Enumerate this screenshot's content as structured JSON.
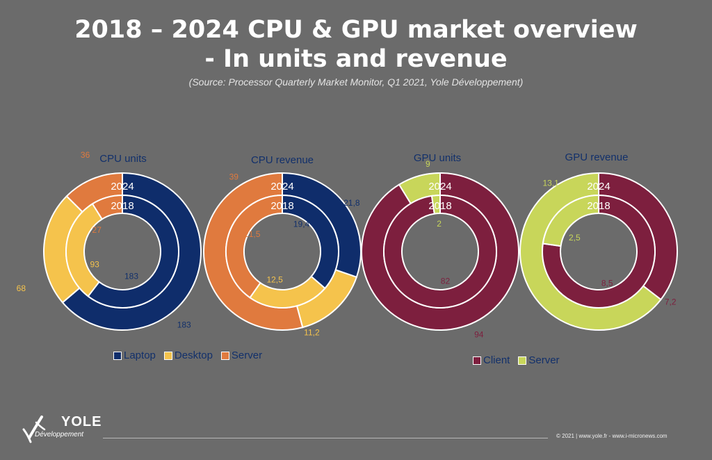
{
  "header": {
    "title_line1": "2018 – 2024 CPU & GPU market overview",
    "title_line2": "- In units and revenue",
    "source": "(Source: Processor Quarterly Market Monitor, Q1  2021, Yole Développement)"
  },
  "ring_labels": {
    "outer": "2024",
    "inner": "2018"
  },
  "colors": {
    "laptop": "#0f2d6b",
    "desktop": "#f5c34c",
    "server_cpu": "#e07a3e",
    "client": "#7d1f3e",
    "server_gpu": "#c8d65a",
    "label_blue": "#12306b"
  },
  "chart_data": [
    {
      "type": "pie",
      "title": "CPU units",
      "inner_ring": {
        "label": "2018",
        "slices": [
          {
            "category": "Laptop",
            "value": 183
          },
          {
            "category": "Desktop",
            "value": 93
          },
          {
            "category": "Server",
            "value": 27
          }
        ]
      },
      "outer_ring": {
        "label": "2024",
        "slices": [
          {
            "category": "Laptop",
            "value": 183
          },
          {
            "category": "Desktop",
            "value": 68
          },
          {
            "category": "Server",
            "value": 36
          }
        ]
      }
    },
    {
      "type": "pie",
      "title": "CPU revenue",
      "inner_ring": {
        "label": "2018",
        "slices": [
          {
            "category": "Laptop",
            "value": 19.4
          },
          {
            "category": "Desktop",
            "value": 12.5
          },
          {
            "category": "Server",
            "value": 21.5
          }
        ]
      },
      "outer_ring": {
        "label": "2024",
        "slices": [
          {
            "category": "Laptop",
            "value": 21.8
          },
          {
            "category": "Desktop",
            "value": 11.2
          },
          {
            "category": "Server",
            "value": 39
          }
        ]
      }
    },
    {
      "type": "pie",
      "title": "GPU units",
      "inner_ring": {
        "label": "2018",
        "slices": [
          {
            "category": "Client",
            "value": 82
          },
          {
            "category": "Server",
            "value": 2
          }
        ]
      },
      "outer_ring": {
        "label": "2024",
        "slices": [
          {
            "category": "Client",
            "value": 94
          },
          {
            "category": "Server",
            "value": 9
          }
        ]
      }
    },
    {
      "type": "pie",
      "title": "GPU revenue",
      "inner_ring": {
        "label": "2018",
        "slices": [
          {
            "category": "Client",
            "value": 8.5
          },
          {
            "category": "Server",
            "value": 2.5
          }
        ]
      },
      "outer_ring": {
        "label": "2024",
        "slices": [
          {
            "category": "Client",
            "value": 7.2
          },
          {
            "category": "Server",
            "value": 13.1
          }
        ]
      }
    }
  ],
  "value_labels": [
    [
      "183",
      "93",
      "27",
      "183",
      "68",
      "36"
    ],
    [
      "19,4",
      "12,5",
      "21,5",
      "21,8",
      "11,2",
      "39"
    ],
    [
      "82",
      "2",
      "94",
      "9"
    ],
    [
      "8,5",
      "2,5",
      "7,2",
      "13,1"
    ]
  ],
  "legends": {
    "cpu": [
      {
        "label": "Laptop",
        "color": "#0f2d6b"
      },
      {
        "label": "Desktop",
        "color": "#f5c34c"
      },
      {
        "label": "Server",
        "color": "#e07a3e"
      }
    ],
    "gpu": [
      {
        "label": "Client",
        "color": "#7d1f3e"
      },
      {
        "label": "Server",
        "color": "#c8d65a"
      }
    ]
  },
  "footer": {
    "copyright": "© 2021 | www.yole.fr - www.i-micronews.com",
    "logo_word": "YOLE",
    "logo_sub": "Développement"
  }
}
